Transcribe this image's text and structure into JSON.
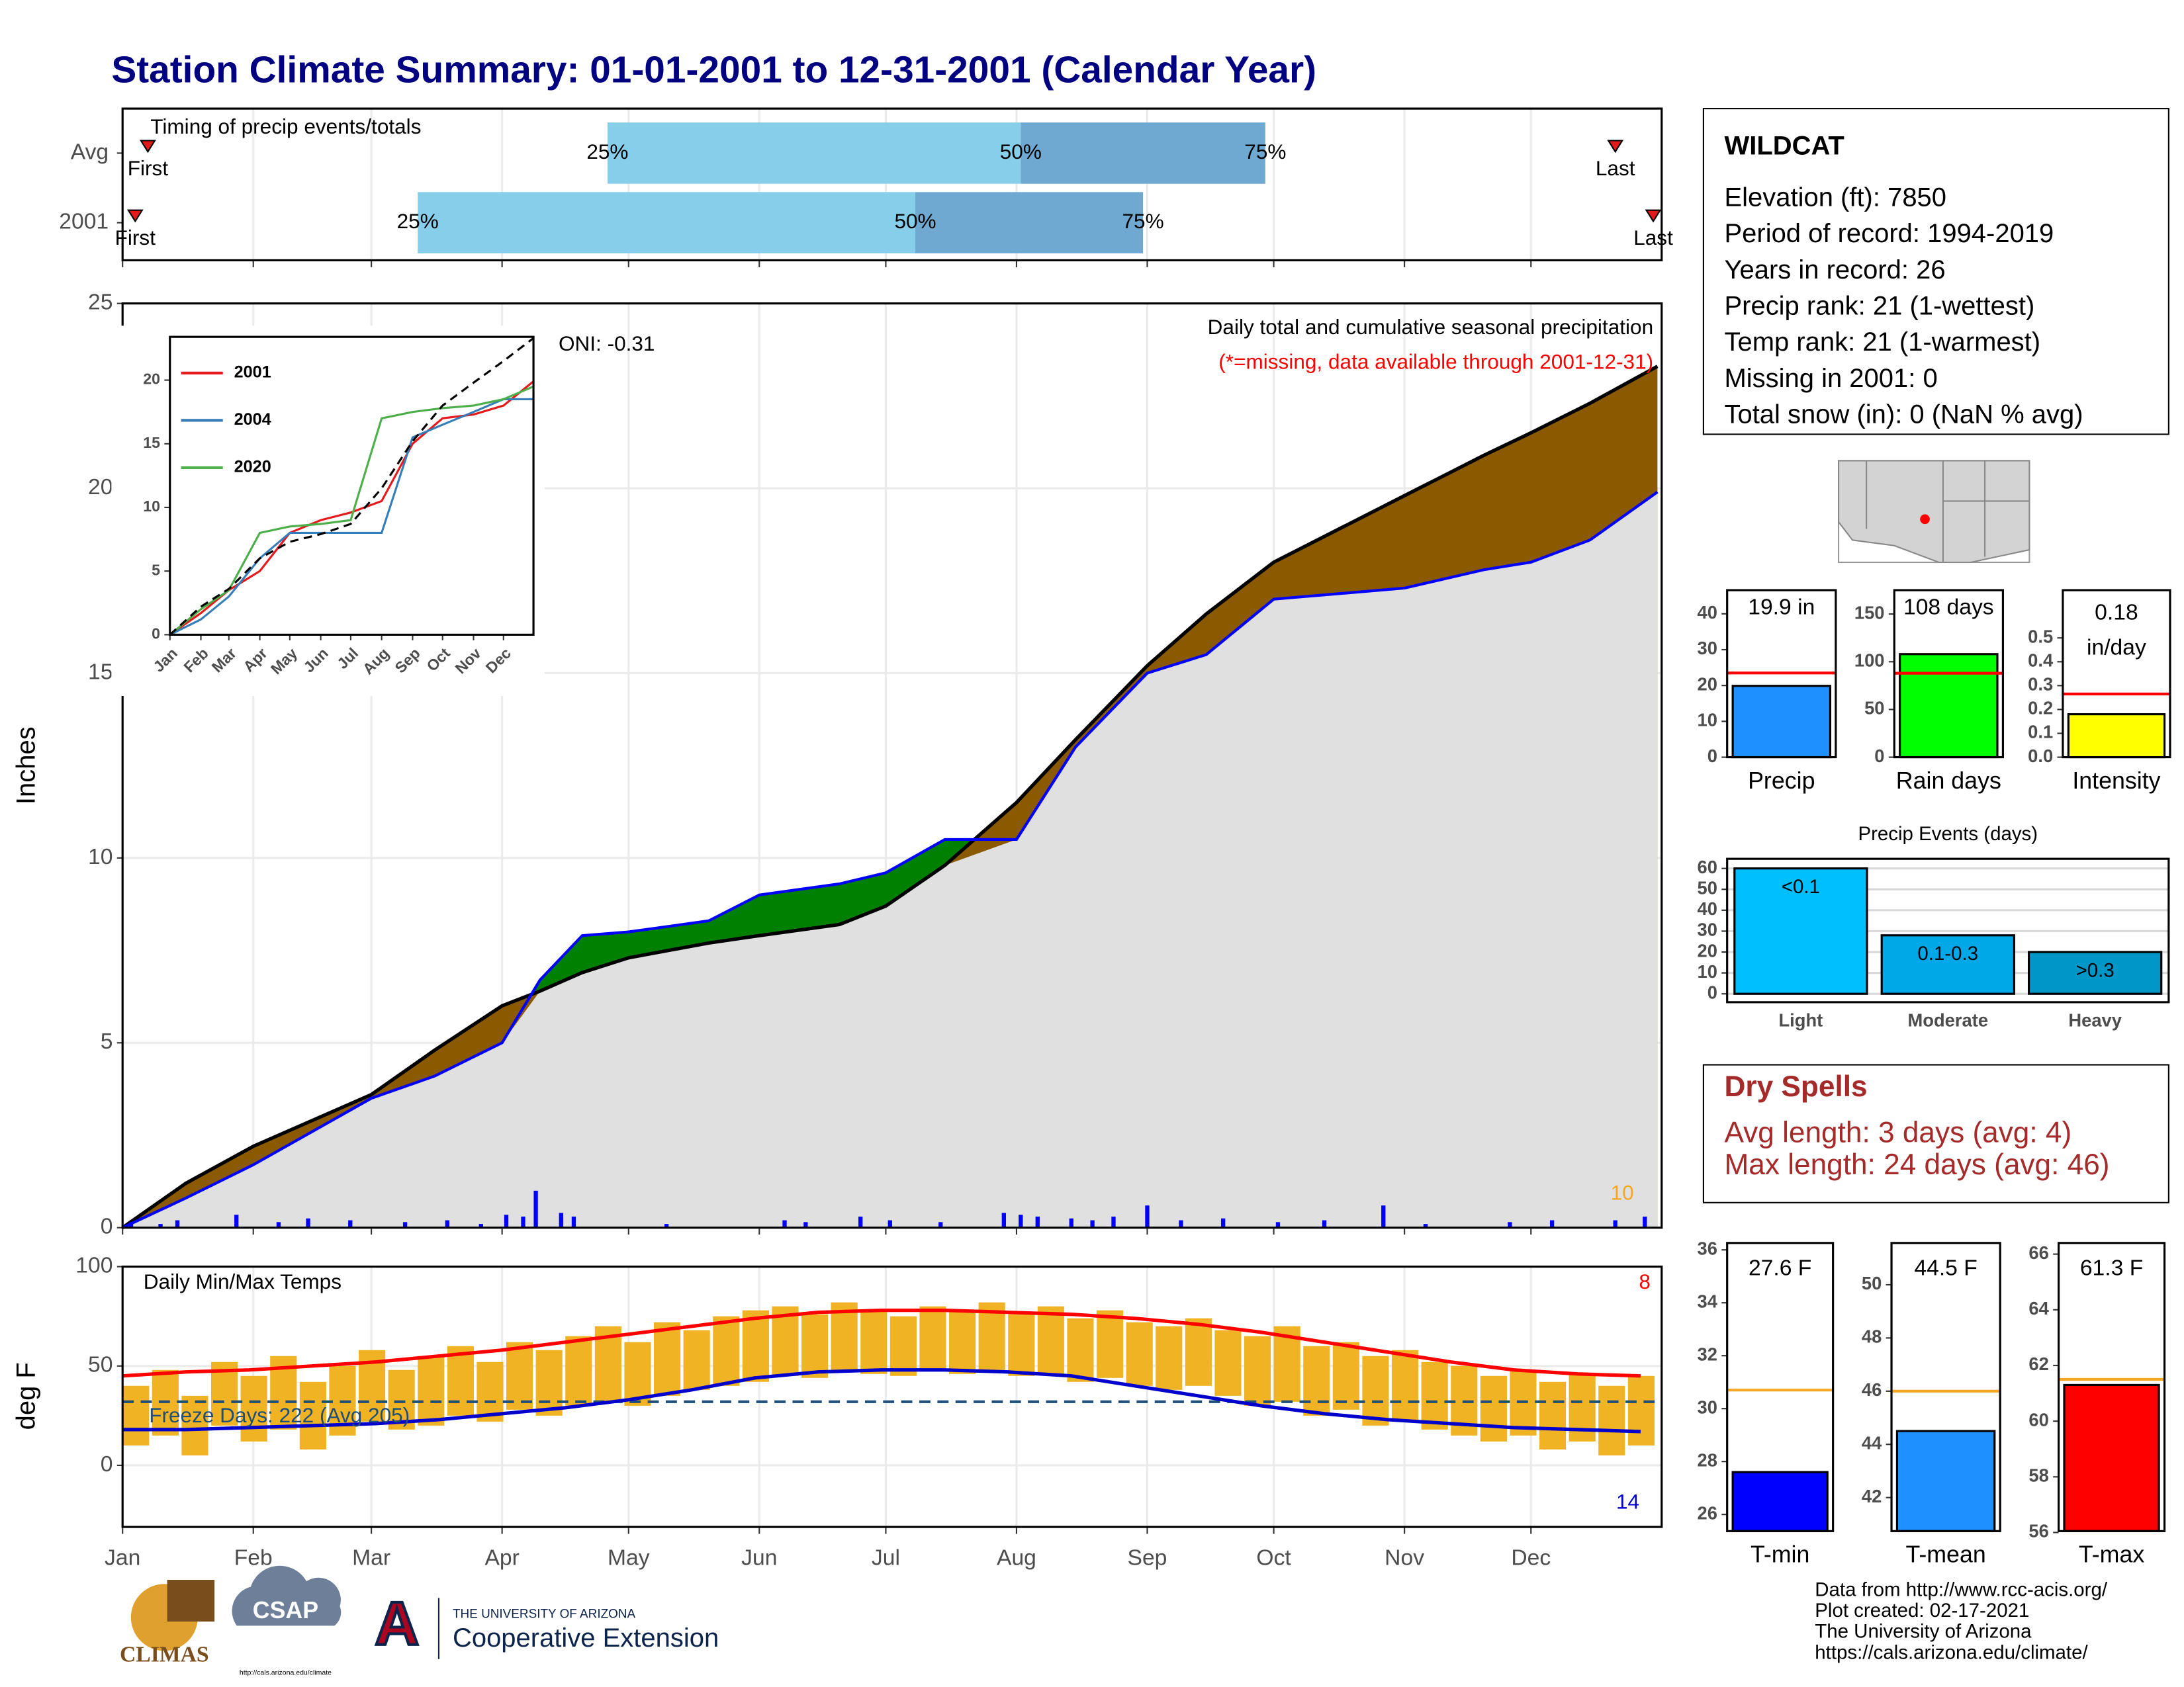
{
  "header": {
    "title": "Station Climate Summary: 01-01-2001 to 12-31-2001 (Calendar Year)"
  },
  "chart_data": [
    {
      "type": "timing",
      "title": "Timing of precip events/totals",
      "rows": [
        "Avg",
        "2001"
      ],
      "first": [
        7,
        4
      ],
      "q25": [
        116,
        71
      ],
      "q50": [
        214,
        189
      ],
      "q75": [
        272,
        243
      ],
      "last": [
        355,
        364
      ],
      "labels": {
        "first": "First",
        "last": "Last",
        "q25": "25%",
        "q50": "50%",
        "q75": "75%"
      },
      "colors": [
        "#87ceeb",
        "#6fa8d0"
      ],
      "marker_color": "#e31a1c",
      "xlim": [
        1,
        366
      ],
      "grid": true
    },
    {
      "type": "area",
      "title": "Daily total and cumulative seasonal precipitation",
      "subtitle": "(*=missing, data available through 2001-12-31)",
      "ylabel": "Inches",
      "oni": "ONI: -0.31",
      "count": "10",
      "xlim": [
        1,
        366
      ],
      "ylim": [
        0,
        25
      ],
      "yticks": [
        0,
        5,
        10,
        15,
        20,
        25
      ],
      "grid": true,
      "x": [
        1,
        16,
        32,
        46,
        60,
        75,
        91,
        100,
        110,
        121,
        140,
        152,
        171,
        182,
        196,
        213,
        227,
        244,
        258,
        274,
        305,
        324,
        335,
        349,
        365
      ],
      "avg_cumulative": [
        0,
        1.2,
        2.2,
        2.9,
        3.6,
        4.8,
        6.0,
        6.4,
        6.9,
        7.3,
        7.7,
        7.9,
        8.2,
        8.7,
        9.8,
        11.5,
        13.2,
        15.2,
        16.6,
        18.0,
        19.8,
        20.9,
        21.5,
        22.3,
        23.3
      ],
      "cumulative": [
        0,
        0.8,
        1.7,
        2.6,
        3.5,
        4.1,
        5.0,
        6.7,
        7.9,
        8.0,
        8.3,
        9.0,
        9.3,
        9.6,
        10.5,
        10.5,
        13.0,
        15.0,
        15.5,
        17.0,
        17.3,
        17.8,
        18.0,
        18.6,
        19.9
      ],
      "daily_x": [
        3,
        10,
        14,
        28,
        38,
        45,
        55,
        68,
        78,
        86,
        92,
        96,
        99,
        105,
        108,
        130,
        158,
        163,
        176,
        183,
        195,
        210,
        214,
        218,
        226,
        231,
        236,
        244,
        252,
        262,
        275,
        286,
        300,
        310,
        330,
        340,
        355,
        362
      ],
      "daily_values": [
        0.15,
        0.1,
        0.2,
        0.35,
        0.15,
        0.25,
        0.2,
        0.15,
        0.2,
        0.1,
        0.35,
        0.3,
        1.0,
        0.4,
        0.3,
        0.1,
        0.2,
        0.15,
        0.3,
        0.2,
        0.15,
        0.4,
        0.35,
        0.3,
        0.25,
        0.2,
        0.3,
        0.6,
        0.2,
        0.25,
        0.15,
        0.2,
        0.6,
        0.1,
        0.15,
        0.2,
        0.2,
        0.3
      ],
      "colors": {
        "above": "#008000",
        "below": "#8b5a00",
        "base": "#e0e0e0",
        "line": "#0000ff",
        "avg_line": "#000000",
        "daily": "#0000ff",
        "subtitle": "#ff0000",
        "count": "#f5a623"
      }
    },
    {
      "type": "line",
      "xlim": [
        1,
        365
      ],
      "ylim": [
        0,
        23.4
      ],
      "yticks": [
        0,
        5,
        10,
        15,
        20
      ],
      "x": [
        1,
        32,
        60,
        91,
        121,
        152,
        182,
        213,
        244,
        274,
        305,
        335,
        365
      ],
      "xticks": [
        {
          "value": 1,
          "label": "Jan"
        },
        {
          "value": 32,
          "label": "Feb"
        },
        {
          "value": 60,
          "label": "Mar"
        },
        {
          "value": 91,
          "label": "Apr"
        },
        {
          "value": 121,
          "label": "May"
        },
        {
          "value": 152,
          "label": "Jun"
        },
        {
          "value": 182,
          "label": "Jul"
        },
        {
          "value": 213,
          "label": "Aug"
        },
        {
          "value": 244,
          "label": "Sep"
        },
        {
          "value": 274,
          "label": "Oct"
        },
        {
          "value": 305,
          "label": "Nov"
        },
        {
          "value": 335,
          "label": "Dec"
        }
      ],
      "series": [
        {
          "name": "2001",
          "color": "#e41a1c",
          "values": [
            0,
            1.7,
            3.5,
            5.0,
            8.0,
            9.0,
            9.6,
            10.5,
            15.0,
            17.0,
            17.3,
            18.0,
            19.9
          ]
        },
        {
          "name": "2004",
          "color": "#377eb8",
          "values": [
            0,
            1.2,
            3.0,
            6.0,
            8.0,
            8.0,
            8.0,
            8.0,
            15.5,
            16.5,
            17.5,
            18.5,
            18.5
          ]
        },
        {
          "name": "2020",
          "color": "#4daf4a",
          "values": [
            0,
            2.0,
            3.5,
            8.0,
            8.5,
            8.7,
            9.0,
            17.0,
            17.5,
            17.8,
            18.0,
            18.5,
            19.5
          ]
        },
        {
          "color": "#000000",
          "dashed": true,
          "values": [
            0,
            2.2,
            3.6,
            6.0,
            7.3,
            7.9,
            8.7,
            11.5,
            15.2,
            18.0,
            19.8,
            21.5,
            23.3
          ]
        }
      ]
    },
    {
      "type": "range",
      "title": "Daily Min/Max Temps",
      "ylabel": "deg F",
      "freeze_text": "Freeze Days: 222 (Avg 205)",
      "max_note": "8",
      "min_note": "14",
      "xlim": [
        1,
        366
      ],
      "ylim": [
        -31,
        100
      ],
      "yticks": [
        0,
        50,
        100
      ],
      "freeze": 32,
      "grid": true,
      "xticks": [
        {
          "value": 1,
          "label": "Jan"
        },
        {
          "value": 32,
          "label": "Feb"
        },
        {
          "value": 60,
          "label": "Mar"
        },
        {
          "value": 91,
          "label": "Apr"
        },
        {
          "value": 121,
          "label": "May"
        },
        {
          "value": 152,
          "label": "Jun"
        },
        {
          "value": 182,
          "label": "Jul"
        },
        {
          "value": 213,
          "label": "Aug"
        },
        {
          "value": 244,
          "label": "Sep"
        },
        {
          "value": 274,
          "label": "Oct"
        },
        {
          "value": 305,
          "label": "Nov"
        },
        {
          "value": 335,
          "label": "Dec"
        }
      ],
      "x": [
        1,
        8,
        15,
        22,
        29,
        36,
        43,
        50,
        57,
        64,
        71,
        78,
        85,
        92,
        99,
        106,
        113,
        120,
        127,
        134,
        141,
        148,
        155,
        162,
        169,
        176,
        183,
        190,
        197,
        204,
        211,
        218,
        225,
        232,
        239,
        246,
        253,
        260,
        267,
        274,
        281,
        288,
        295,
        302,
        309,
        316,
        323,
        330,
        337,
        344,
        351,
        358
      ],
      "max": [
        40,
        48,
        35,
        52,
        45,
        55,
        42,
        50,
        58,
        48,
        55,
        60,
        52,
        62,
        58,
        65,
        70,
        62,
        72,
        68,
        75,
        78,
        80,
        76,
        82,
        78,
        75,
        80,
        78,
        82,
        76,
        80,
        74,
        78,
        72,
        70,
        74,
        68,
        65,
        70,
        60,
        62,
        55,
        58,
        52,
        50,
        45,
        48,
        42,
        46,
        40,
        45
      ],
      "min": [
        10,
        15,
        5,
        20,
        12,
        18,
        8,
        15,
        22,
        18,
        20,
        25,
        22,
        28,
        25,
        30,
        32,
        30,
        35,
        38,
        40,
        42,
        45,
        44,
        48,
        46,
        45,
        48,
        46,
        48,
        45,
        46,
        42,
        44,
        40,
        38,
        40,
        35,
        30,
        32,
        25,
        28,
        20,
        22,
        18,
        15,
        12,
        15,
        8,
        12,
        5,
        10
      ],
      "avg_x": [
        1,
        16,
        31,
        46,
        61,
        76,
        91,
        106,
        121,
        136,
        151,
        166,
        181,
        196,
        211,
        226,
        241,
        256,
        271,
        286,
        301,
        316,
        331,
        346,
        361
      ],
      "avg_max": [
        45,
        47,
        48,
        50,
        52,
        55,
        58,
        62,
        66,
        70,
        74,
        77,
        78,
        78,
        77,
        76,
        74,
        71,
        67,
        62,
        57,
        52,
        48,
        46,
        45
      ],
      "avg_min": [
        18,
        18,
        19,
        20,
        21,
        23,
        26,
        29,
        33,
        38,
        44,
        47,
        48,
        48,
        47,
        45,
        40,
        35,
        30,
        26,
        23,
        21,
        19,
        18,
        17
      ],
      "colors": {
        "bar": "#f0b323",
        "max": "#ff0000",
        "min": "#0000cc",
        "freeze": "#1f4e79"
      }
    },
    {
      "type": "bar",
      "categories": [
        "Precip"
      ],
      "values": [
        19.9
      ],
      "value_labels": [
        "19.9 in"
      ],
      "avg": 23.5,
      "color": "#1e90ff",
      "avg_color": "#ff0000",
      "ylim": [
        0,
        46.6
      ],
      "yticks": [
        0,
        10,
        20,
        30,
        40
      ]
    },
    {
      "type": "bar",
      "categories": [
        "Rain days"
      ],
      "values": [
        108
      ],
      "value_labels": [
        "108 days"
      ],
      "avg": 88,
      "color": "#00ff00",
      "avg_color": "#ff0000",
      "ylim": [
        0,
        175
      ],
      "yticks": [
        0,
        50,
        100,
        150
      ]
    },
    {
      "type": "bar",
      "categories": [
        "Intensity"
      ],
      "values": [
        0.18
      ],
      "value_labels": [
        "0.18"
      ],
      "unit": "in/day",
      "avg": 0.265,
      "color": "#ffff00",
      "avg_color": "#ff0000",
      "ylim": [
        0,
        0.7
      ],
      "yticks": [
        {
          "value": 0,
          "label": "0.0"
        },
        0.1,
        0.2,
        0.3,
        0.4,
        0.5
      ]
    },
    {
      "type": "bar",
      "title": "Precip Events (days)",
      "categories": [
        "Light",
        "Moderate",
        "Heavy"
      ],
      "values": [
        60,
        28,
        20
      ],
      "value_labels": [
        "<0.1",
        "0.1-0.3",
        ">0.3"
      ],
      "colors": [
        "#00bfff",
        "#00a8e8",
        "#0096c8"
      ],
      "ylim": [
        -4,
        64.6
      ],
      "yticks": [
        0,
        10,
        20,
        30,
        40,
        50,
        60
      ],
      "grid": true
    },
    {
      "type": "bar",
      "categories": [
        "T-min"
      ],
      "values": [
        27.6
      ],
      "value_labels": [
        "27.6 F"
      ],
      "avg": 30.7,
      "color": "#0000ff",
      "avg_color": "#f5a623",
      "ylim": [
        25.37,
        36.26
      ],
      "yticks": [
        26,
        28,
        30,
        32,
        34,
        36
      ]
    },
    {
      "type": "bar",
      "categories": [
        "T-mean"
      ],
      "values": [
        44.5
      ],
      "value_labels": [
        "44.5 F"
      ],
      "avg": 46.0,
      "color": "#1e90ff",
      "avg_color": "#f5a623",
      "ylim": [
        40.74,
        51.57
      ],
      "yticks": [
        42,
        44,
        46,
        48,
        50
      ]
    },
    {
      "type": "bar",
      "categories": [
        "T-max"
      ],
      "values": [
        61.3
      ],
      "value_labels": [
        "61.3 F"
      ],
      "avg": 61.5,
      "color": "#ff0000",
      "avg_color": "#f5a623",
      "ylim": [
        56.05,
        66.4
      ],
      "yticks": [
        56,
        58,
        60,
        62,
        64,
        66
      ]
    }
  ],
  "info": {
    "title": "WILDCAT",
    "lines": [
      "Elevation (ft): 7850",
      "Period of record: 1994-2019",
      "Years in record: 26",
      "Precip rank: 21 (1-wettest)",
      "Temp rank: 21 (1-warmest)",
      "Missing in 2001: 0",
      "Total snow (in): 0 (NaN % avg)"
    ]
  },
  "dry_spells": {
    "title": "Dry Spells",
    "lines": [
      "Avg length: 3 days (avg: 4)",
      "Max length: 24 days (avg: 46)"
    ]
  },
  "footer": [
    "Data from http://www.rcc-acis.org/",
    "Plot created: 02-17-2021",
    "The University of Arizona",
    "https://cals.arizona.edu/climate/"
  ],
  "logos": {
    "climas": "CLIMAS",
    "csap": "CSAP",
    "csap_url": "http://cals.arizona.edu/climate",
    "ua": "A",
    "ua_small": "THE UNIVERSITY OF ARIZONA",
    "ua_name": "Cooperative Extension"
  }
}
